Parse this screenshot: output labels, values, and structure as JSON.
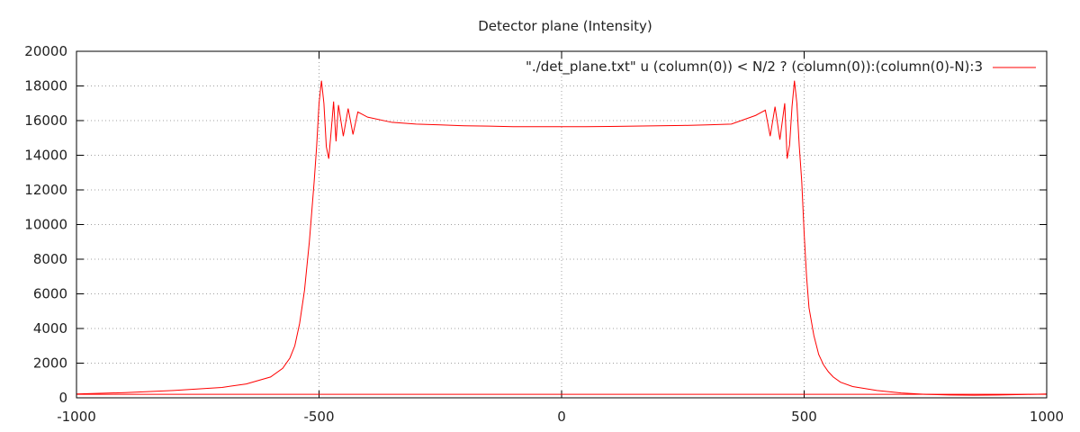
{
  "chart_data": {
    "type": "line",
    "title": "Detector plane (Intensity)",
    "xlabel": "",
    "ylabel": "",
    "xlim": [
      -1000,
      1000
    ],
    "ylim": [
      0,
      20000
    ],
    "xticks": [
      -1000,
      -500,
      0,
      500,
      1000
    ],
    "yticks": [
      0,
      2000,
      4000,
      6000,
      8000,
      10000,
      12000,
      14000,
      16000,
      18000,
      20000
    ],
    "grid": true,
    "legend_position": "top-right",
    "series": [
      {
        "name": "\"./det_plane.txt\" u (column(0)) < N/2 ? (column(0)):(column(0)-N):3",
        "color": "#ff0000",
        "x": [
          -1020,
          -900,
          -800,
          -700,
          -650,
          -600,
          -575,
          -560,
          -550,
          -540,
          -530,
          -520,
          -510,
          -505,
          -500,
          -495,
          -490,
          -485,
          -480,
          -475,
          -470,
          -465,
          -460,
          -450,
          -440,
          -430,
          -420,
          -400,
          -350,
          -300,
          -250,
          -200,
          -150,
          -100,
          -50,
          0,
          50,
          100,
          150,
          200,
          250,
          300,
          350,
          400,
          420,
          430,
          440,
          450,
          460,
          465,
          470,
          475,
          480,
          485,
          490,
          495,
          500,
          505,
          510,
          520,
          530,
          540,
          550,
          560,
          575,
          600,
          650,
          700,
          750,
          800,
          850,
          900,
          950,
          1000,
          1020
        ],
        "y": [
          220,
          300,
          420,
          600,
          800,
          1200,
          1700,
          2300,
          3000,
          4300,
          6200,
          9000,
          12500,
          14500,
          17000,
          18300,
          17000,
          14500,
          13800,
          15400,
          17100,
          14800,
          16900,
          15100,
          16700,
          15200,
          16500,
          16200,
          15900,
          15800,
          15750,
          15700,
          15680,
          15650,
          15650,
          15650,
          15650,
          15660,
          15680,
          15700,
          15720,
          15750,
          15800,
          16300,
          16600,
          15100,
          16800,
          14900,
          17000,
          13800,
          14600,
          16800,
          18300,
          17000,
          14500,
          12500,
          9500,
          7000,
          5200,
          3600,
          2500,
          1900,
          1500,
          1200,
          900,
          650,
          420,
          280,
          200,
          160,
          150,
          160,
          190,
          220,
          230
        ],
        "baseline": 200
      }
    ]
  }
}
